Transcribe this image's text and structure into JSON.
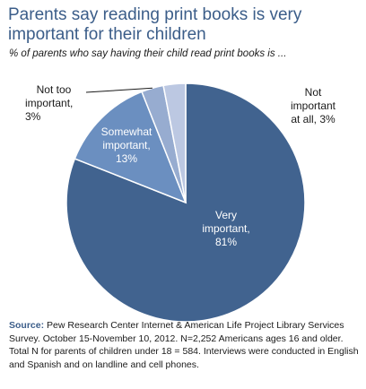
{
  "title": "Parents say reading print books is very important for their children",
  "subtitle": "% of parents who say having their child read print books is ...",
  "chart_data": {
    "type": "pie",
    "slices": [
      {
        "label": "Very important, 81%",
        "value": 81,
        "color": "#41638f"
      },
      {
        "label": "Somewhat important, 13%",
        "value": 13,
        "color": "#6b8fc0"
      },
      {
        "label": "Not too important, 3%",
        "value": 3,
        "color": "#97acd0"
      },
      {
        "label": "Not important at all, 3%",
        "value": 3,
        "color": "#bcc8e2"
      }
    ]
  },
  "labels": {
    "very_line1": "Very",
    "very_line2": "important,",
    "very_line3": "81%",
    "somewhat_line1": "Somewhat",
    "somewhat_line2": "important,",
    "somewhat_line3": "13%",
    "nottoo_line1": "Not too",
    "nottoo_line2": "important,",
    "nottoo_line3": "3%",
    "notatall_line1": "Not",
    "notatall_line2": "important",
    "notatall_line3": "at all, 3%"
  },
  "source": {
    "label": "Source:",
    "text": "Pew Research Center Internet & American Life Project Library Services Survey. October 15-November 10, 2012. N=2,252 Americans ages 16 and older. Total N for parents of children under 18 = 584. Interviews were conducted in English and Spanish and on landline and cell phones."
  }
}
